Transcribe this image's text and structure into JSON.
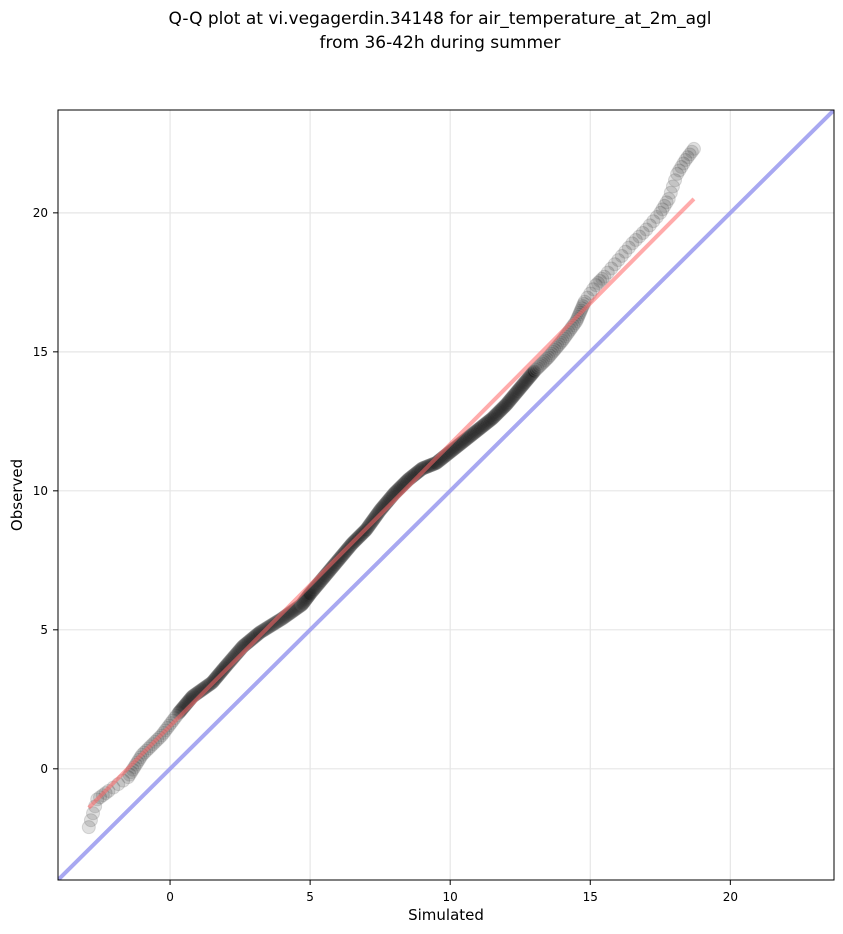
{
  "chart_data": {
    "type": "scatter",
    "title": [
      "Q-Q plot at vi.vegagerdin.34148 for air_temperature_at_2m_agl",
      "from 36-42h during summer"
    ],
    "xlabel": "Simulated",
    "ylabel": "Observed",
    "xlim": [
      -4,
      23.7
    ],
    "ylim": [
      -4,
      23.7
    ],
    "xticks": [
      0,
      5,
      10,
      15,
      20
    ],
    "yticks": [
      0,
      5,
      10,
      15,
      20
    ],
    "grid": true,
    "point_color": "#000000",
    "fit_line_color": "#ff6666",
    "identity_line_color": "#9999ee",
    "quantile_curve": [
      [
        -2.9,
        -2.1
      ],
      [
        -2.6,
        -1.1
      ],
      [
        -2.2,
        -0.8
      ],
      [
        -1.5,
        -0.3
      ],
      [
        -1.0,
        0.5
      ],
      [
        -0.3,
        1.2
      ],
      [
        0.3,
        2.0
      ],
      [
        0.8,
        2.6
      ],
      [
        1.5,
        3.1
      ],
      [
        2.0,
        3.7
      ],
      [
        2.6,
        4.4
      ],
      [
        3.2,
        4.9
      ],
      [
        4.0,
        5.4
      ],
      [
        4.7,
        5.9
      ],
      [
        5.0,
        6.3
      ],
      [
        5.5,
        6.9
      ],
      [
        6.0,
        7.5
      ],
      [
        6.5,
        8.1
      ],
      [
        7.0,
        8.6
      ],
      [
        7.5,
        9.3
      ],
      [
        8.0,
        9.9
      ],
      [
        8.5,
        10.4
      ],
      [
        9.0,
        10.8
      ],
      [
        9.5,
        11.0
      ],
      [
        10.0,
        11.4
      ],
      [
        10.5,
        11.8
      ],
      [
        11.0,
        12.2
      ],
      [
        11.5,
        12.6
      ],
      [
        12.0,
        13.1
      ],
      [
        12.5,
        13.7
      ],
      [
        13.0,
        14.3
      ],
      [
        13.5,
        14.8
      ],
      [
        14.0,
        15.4
      ],
      [
        14.5,
        16.1
      ],
      [
        14.8,
        16.8
      ],
      [
        15.2,
        17.4
      ],
      [
        15.5,
        17.7
      ],
      [
        16.0,
        18.3
      ],
      [
        16.5,
        18.9
      ],
      [
        17.0,
        19.4
      ],
      [
        17.5,
        20.0
      ],
      [
        17.8,
        20.5
      ],
      [
        18.1,
        21.4
      ],
      [
        18.4,
        21.9
      ],
      [
        18.7,
        22.3
      ]
    ],
    "fit_line": [
      [
        -2.9,
        -1.4
      ],
      [
        18.7,
        20.5
      ]
    ],
    "identity_line": [
      [
        -4,
        -4
      ],
      [
        23.7,
        23.7
      ]
    ]
  }
}
